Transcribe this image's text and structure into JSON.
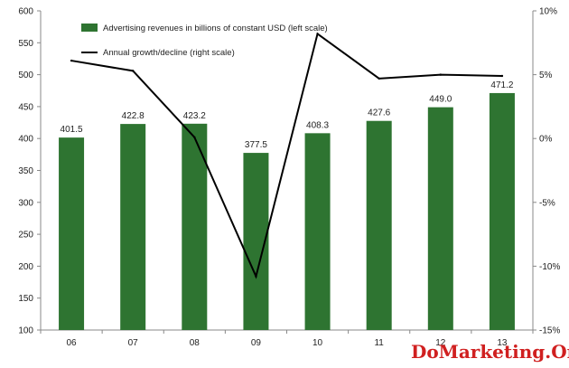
{
  "chart_data": {
    "type": "bar",
    "categories": [
      "06",
      "07",
      "08",
      "09",
      "10",
      "11",
      "12",
      "13"
    ],
    "series": [
      {
        "name": "Advertising revenues in billions of constant USD (left scale)",
        "type": "bar",
        "axis": "left",
        "values": [
          401.5,
          422.8,
          423.2,
          377.5,
          408.3,
          427.6,
          449.0,
          471.2
        ],
        "labels": [
          "401.5",
          "422.8",
          "423.2",
          "377.5",
          "408.3",
          "427.6",
          "449.0",
          "471.2"
        ],
        "color": "#2e7431"
      },
      {
        "name": "Annual growth/decline (right scale)",
        "type": "line",
        "axis": "right",
        "values": [
          6.1,
          5.3,
          0.1,
          -10.8,
          8.2,
          4.7,
          5.0,
          4.9
        ],
        "color": "#000000"
      }
    ],
    "y_left": {
      "min": 100,
      "max": 600,
      "step": 50,
      "ticks": [
        "100",
        "150",
        "200",
        "250",
        "300",
        "350",
        "400",
        "450",
        "500",
        "550",
        "600"
      ]
    },
    "y_right": {
      "min": -15,
      "max": 10,
      "step": 5,
      "ticks": [
        "-15%",
        "-10%",
        "-5%",
        "0%",
        "5%",
        "10%"
      ]
    },
    "legend_position": "top-center",
    "grid": false,
    "watermark": "DoMarketing.Org"
  }
}
